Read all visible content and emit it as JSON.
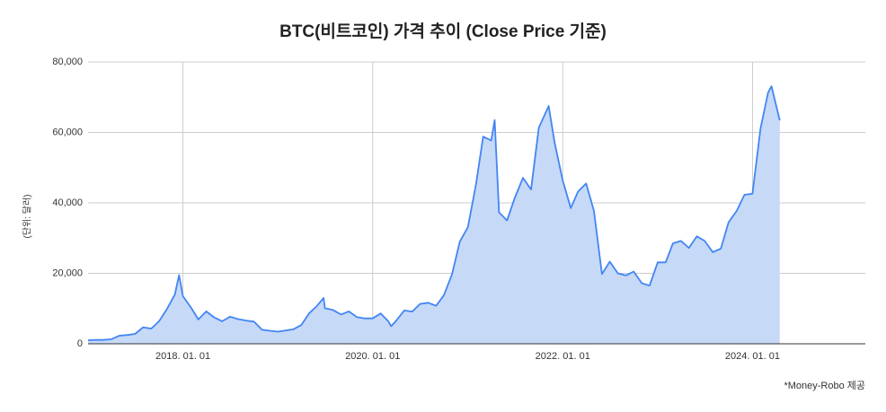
{
  "chart_data": {
    "type": "area",
    "title": "BTC(비트코인) 가격 추이 (Close Price 기준)",
    "y_label": "(단위: 달러)",
    "source": "*Money-Robo 제공",
    "color": "#4285f4",
    "fill": "#c6d9f7",
    "grid": true,
    "xlim": [
      "2017-01-01",
      "2025-03-10"
    ],
    "xticks": [
      {
        "value": "2018-01-01",
        "label": "2018. 01. 01"
      },
      {
        "value": "2020-01-01",
        "label": "2020. 01. 01"
      },
      {
        "value": "2022-01-01",
        "label": "2022. 01. 01"
      },
      {
        "value": "2024-01-01",
        "label": "2024. 01. 01"
      }
    ],
    "ylim": [
      0,
      80000
    ],
    "yticks": [
      0,
      {
        "value": 20000,
        "label": "20,000"
      },
      {
        "value": 40000,
        "label": "40,000"
      },
      {
        "value": 60000,
        "label": "60,000"
      },
      {
        "value": 80000,
        "label": "80,000"
      }
    ],
    "x": [
      "2017-01-01",
      "2017-02-01",
      "2017-03-01",
      "2017-04-01",
      "2017-05-01",
      "2017-06-01",
      "2017-07-01",
      "2017-08-01",
      "2017-09-01",
      "2017-10-01",
      "2017-11-01",
      "2017-12-01",
      "2017-12-17",
      "2018-01-01",
      "2018-02-01",
      "2018-03-01",
      "2018-04-01",
      "2018-05-01",
      "2018-06-01",
      "2018-07-01",
      "2018-08-01",
      "2018-09-01",
      "2018-10-01",
      "2018-11-01",
      "2018-12-01",
      "2019-01-01",
      "2019-02-01",
      "2019-03-01",
      "2019-04-01",
      "2019-05-01",
      "2019-06-01",
      "2019-06-26",
      "2019-07-01",
      "2019-08-01",
      "2019-09-01",
      "2019-10-01",
      "2019-11-01",
      "2019-12-01",
      "2020-01-01",
      "2020-02-01",
      "2020-03-01",
      "2020-03-12",
      "2020-04-01",
      "2020-05-01",
      "2020-06-01",
      "2020-07-01",
      "2020-08-01",
      "2020-09-01",
      "2020-10-01",
      "2020-11-01",
      "2020-12-01",
      "2021-01-01",
      "2021-02-01",
      "2021-03-01",
      "2021-04-01",
      "2021-04-14",
      "2021-05-01",
      "2021-06-01",
      "2021-07-01",
      "2021-08-01",
      "2021-09-01",
      "2021-10-01",
      "2021-11-08",
      "2021-12-01",
      "2022-01-01",
      "2022-02-01",
      "2022-03-01",
      "2022-04-01",
      "2022-05-01",
      "2022-06-01",
      "2022-07-01",
      "2022-08-01",
      "2022-09-01",
      "2022-10-01",
      "2022-11-01",
      "2022-12-01",
      "2023-01-01",
      "2023-02-01",
      "2023-03-01",
      "2023-04-01",
      "2023-05-01",
      "2023-06-01",
      "2023-07-01",
      "2023-08-01",
      "2023-09-01",
      "2023-10-01",
      "2023-11-01",
      "2023-12-01",
      "2024-01-01",
      "2024-02-01",
      "2024-03-01",
      "2024-03-14",
      "2024-04-15"
    ],
    "values": [
      1000,
      1100,
      1100,
      1300,
      2300,
      2500,
      2800,
      4700,
      4300,
      6400,
      9900,
      14000,
      19500,
      13500,
      10300,
      6900,
      9200,
      7500,
      6400,
      7700,
      7000,
      6600,
      6300,
      4000,
      3700,
      3450,
      3800,
      4100,
      5300,
      8600,
      10800,
      13000,
      10100,
      9600,
      8300,
      9200,
      7600,
      7200,
      7200,
      8600,
      6400,
      5000,
      6600,
      9450,
      9140,
      11300,
      11650,
      10800,
      13800,
      19700,
      29000,
      33100,
      45100,
      58800,
      57700,
      63500,
      37300,
      35000,
      41500,
      47100,
      43800,
      61300,
      67500,
      57000,
      46300,
      38500,
      43200,
      45500,
      37700,
      19800,
      23300,
      20000,
      19400,
      20500,
      17200,
      16500,
      23100,
      23100,
      28500,
      29200,
      27200,
      30500,
      29200,
      26000,
      27000,
      34500,
      37700,
      42300,
      42600,
      61200,
      71300,
      73100,
      63400
    ]
  }
}
